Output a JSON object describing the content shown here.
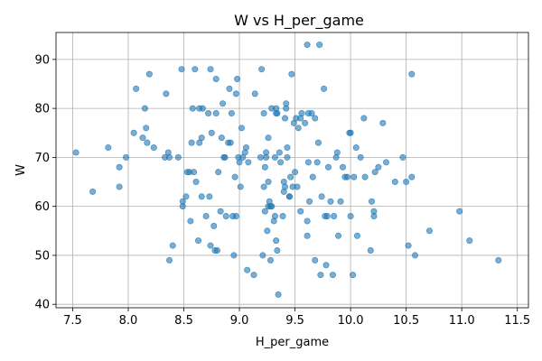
{
  "chart_data": {
    "type": "scatter",
    "title": "W vs H_per_game",
    "xlabel": "H_per_game",
    "ylabel": "W",
    "xlim": [
      7.35,
      11.6
    ],
    "ylim": [
      39.3,
      95.5
    ],
    "xticks": [
      "7.5",
      "8.0",
      "8.5",
      "9.0",
      "9.5",
      "10.0",
      "10.5",
      "11.0",
      "11.5"
    ],
    "yticks": [
      "40",
      "50",
      "60",
      "70",
      "80",
      "90"
    ],
    "grid": true,
    "legend": "none",
    "marker_color": "#1f77b4",
    "marker_alpha": 0.6,
    "points": [
      [
        7.53,
        71
      ],
      [
        7.68,
        63
      ],
      [
        7.82,
        72
      ],
      [
        7.92,
        68
      ],
      [
        7.92,
        64
      ],
      [
        7.98,
        70
      ],
      [
        8.05,
        75
      ],
      [
        8.07,
        84
      ],
      [
        8.13,
        74
      ],
      [
        8.15,
        80
      ],
      [
        8.16,
        76
      ],
      [
        8.17,
        73
      ],
      [
        8.19,
        87
      ],
      [
        8.23,
        72
      ],
      [
        8.33,
        70
      ],
      [
        8.34,
        83
      ],
      [
        8.36,
        71
      ],
      [
        8.37,
        49
      ],
      [
        8.37,
        70
      ],
      [
        8.4,
        52
      ],
      [
        8.45,
        70
      ],
      [
        8.48,
        88
      ],
      [
        8.49,
        61
      ],
      [
        8.49,
        60
      ],
      [
        8.52,
        62
      ],
      [
        8.53,
        67
      ],
      [
        8.55,
        67
      ],
      [
        8.56,
        57
      ],
      [
        8.57,
        73
      ],
      [
        8.58,
        80
      ],
      [
        8.59,
        67
      ],
      [
        8.6,
        88
      ],
      [
        8.61,
        65
      ],
      [
        8.63,
        53
      ],
      [
        8.64,
        73
      ],
      [
        8.64,
        80
      ],
      [
        8.66,
        74
      ],
      [
        8.66,
        62
      ],
      [
        8.67,
        80
      ],
      [
        8.7,
        58
      ],
      [
        8.72,
        79
      ],
      [
        8.73,
        62
      ],
      [
        8.74,
        52
      ],
      [
        8.74,
        88
      ],
      [
        8.75,
        75
      ],
      [
        8.77,
        56
      ],
      [
        8.78,
        51
      ],
      [
        8.79,
        79
      ],
      [
        8.79,
        86
      ],
      [
        8.8,
        51
      ],
      [
        8.81,
        67
      ],
      [
        8.83,
        59
      ],
      [
        8.84,
        74
      ],
      [
        8.85,
        81
      ],
      [
        8.86,
        70
      ],
      [
        8.87,
        70
      ],
      [
        8.88,
        58
      ],
      [
        8.9,
        73
      ],
      [
        8.91,
        84
      ],
      [
        8.92,
        73
      ],
      [
        8.93,
        79
      ],
      [
        8.94,
        58
      ],
      [
        8.95,
        50
      ],
      [
        8.96,
        66
      ],
      [
        8.97,
        83
      ],
      [
        8.97,
        58
      ],
      [
        8.98,
        86
      ],
      [
        8.99,
        70
      ],
      [
        9.0,
        69
      ],
      [
        9.01,
        64
      ],
      [
        9.02,
        76
      ],
      [
        9.03,
        70
      ],
      [
        9.05,
        71
      ],
      [
        9.06,
        72
      ],
      [
        9.07,
        47
      ],
      [
        9.08,
        69
      ],
      [
        9.13,
        46
      ],
      [
        9.14,
        83
      ],
      [
        9.19,
        70
      ],
      [
        9.2,
        88
      ],
      [
        9.21,
        50
      ],
      [
        9.22,
        79
      ],
      [
        9.22,
        64
      ],
      [
        9.23,
        59
      ],
      [
        9.23,
        68
      ],
      [
        9.24,
        70
      ],
      [
        9.24,
        71
      ],
      [
        9.25,
        55
      ],
      [
        9.26,
        65
      ],
      [
        9.26,
        74
      ],
      [
        9.26,
        60
      ],
      [
        9.27,
        61
      ],
      [
        9.28,
        49
      ],
      [
        9.28,
        60
      ],
      [
        9.29,
        60
      ],
      [
        9.29,
        80
      ],
      [
        9.31,
        57
      ],
      [
        9.32,
        58
      ],
      [
        9.32,
        70
      ],
      [
        9.33,
        53
      ],
      [
        9.33,
        80
      ],
      [
        9.33,
        79
      ],
      [
        9.34,
        79
      ],
      [
        9.34,
        51
      ],
      [
        9.35,
        42
      ],
      [
        9.36,
        71
      ],
      [
        9.37,
        69
      ],
      [
        9.39,
        58
      ],
      [
        9.4,
        63
      ],
      [
        9.4,
        65
      ],
      [
        9.41,
        64
      ],
      [
        9.41,
        78
      ],
      [
        9.42,
        80
      ],
      [
        9.42,
        81
      ],
      [
        9.43,
        70
      ],
      [
        9.43,
        72
      ],
      [
        9.45,
        62
      ],
      [
        9.45,
        62
      ],
      [
        9.46,
        66
      ],
      [
        9.47,
        87
      ],
      [
        9.48,
        64
      ],
      [
        9.49,
        77
      ],
      [
        9.5,
        67
      ],
      [
        9.51,
        78
      ],
      [
        9.52,
        64
      ],
      [
        9.53,
        76
      ],
      [
        9.55,
        59
      ],
      [
        9.55,
        78
      ],
      [
        9.56,
        79
      ],
      [
        9.59,
        77
      ],
      [
        9.61,
        93
      ],
      [
        9.61,
        54
      ],
      [
        9.61,
        57
      ],
      [
        9.62,
        79
      ],
      [
        9.62,
        69
      ],
      [
        9.63,
        61
      ],
      [
        9.65,
        79
      ],
      [
        9.66,
        66
      ],
      [
        9.68,
        49
      ],
      [
        9.68,
        78
      ],
      [
        9.7,
        69
      ],
      [
        9.71,
        73
      ],
      [
        9.72,
        93
      ],
      [
        9.73,
        46
      ],
      [
        9.74,
        62
      ],
      [
        9.76,
        84
      ],
      [
        9.77,
        58
      ],
      [
        9.78,
        48
      ],
      [
        9.79,
        58
      ],
      [
        9.8,
        68
      ],
      [
        9.82,
        61
      ],
      [
        9.84,
        46
      ],
      [
        9.85,
        58
      ],
      [
        9.87,
        70
      ],
      [
        9.88,
        71
      ],
      [
        9.89,
        54
      ],
      [
        9.91,
        61
      ],
      [
        9.93,
        68
      ],
      [
        9.95,
        66
      ],
      [
        9.97,
        66
      ],
      [
        9.99,
        75
      ],
      [
        10.0,
        58
      ],
      [
        10.0,
        75
      ],
      [
        10.02,
        46
      ],
      [
        10.03,
        66
      ],
      [
        10.05,
        72
      ],
      [
        10.06,
        54
      ],
      [
        10.09,
        70
      ],
      [
        10.12,
        78
      ],
      [
        10.13,
        66
      ],
      [
        10.18,
        51
      ],
      [
        10.19,
        61
      ],
      [
        10.21,
        58
      ],
      [
        10.21,
        59
      ],
      [
        10.22,
        67
      ],
      [
        10.25,
        68
      ],
      [
        10.29,
        77
      ],
      [
        10.32,
        69
      ],
      [
        10.4,
        65
      ],
      [
        10.47,
        70
      ],
      [
        10.5,
        65
      ],
      [
        10.52,
        52
      ],
      [
        10.55,
        87
      ],
      [
        10.55,
        66
      ],
      [
        10.58,
        50
      ],
      [
        10.71,
        55
      ],
      [
        10.98,
        59
      ],
      [
        11.07,
        53
      ],
      [
        11.33,
        49
      ]
    ]
  }
}
